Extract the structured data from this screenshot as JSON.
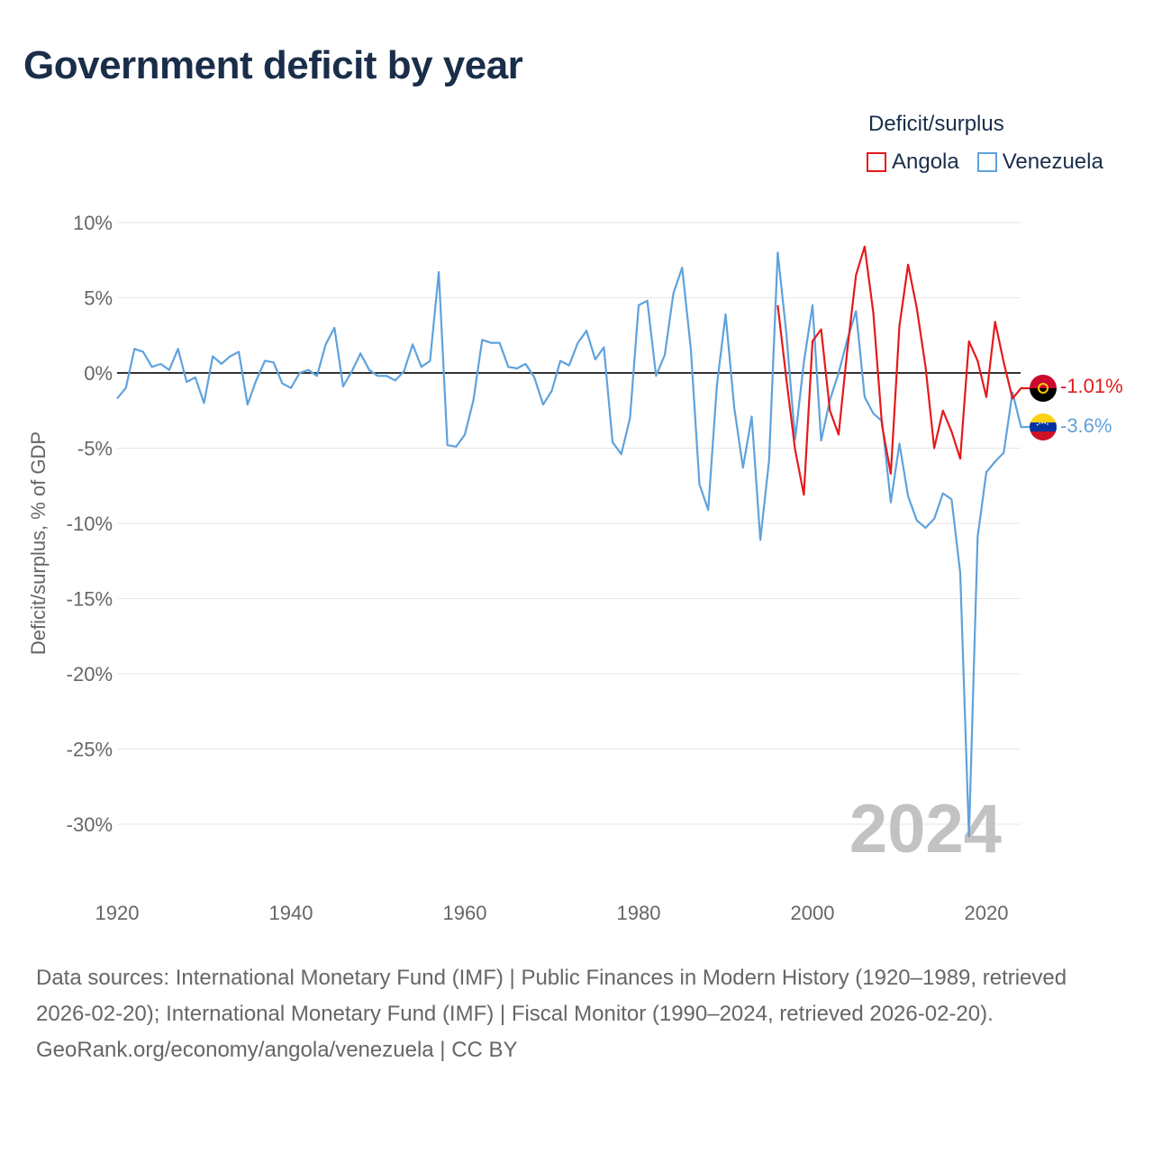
{
  "title": "Government deficit by year",
  "legend": {
    "title": "Deficit/surplus",
    "items": [
      {
        "name": "Angola",
        "color": "#e41a1c"
      },
      {
        "name": "Venezuela",
        "color": "#5fa2dd"
      }
    ]
  },
  "watermark_year": "2024",
  "end_labels": {
    "angola": "-1.01%",
    "venezuela": "-3.6%"
  },
  "footer": {
    "sources": "Data sources: International Monetary Fund (IMF) | Public Finances in Modern History (1920–1989, retrieved 2026-02-20); International Monetary Fund (IMF) | Fiscal Monitor (1990–2024, retrieved 2026-02-20).",
    "credit": "GeoRank.org/economy/angola/venezuela | CC BY"
  },
  "chart_data": {
    "type": "line",
    "title": "Government deficit by year",
    "xlabel": "",
    "ylabel": "Deficit/surplus, % of GDP",
    "xlim": [
      1920,
      2024
    ],
    "ylim": [
      -34,
      10
    ],
    "xticks": [
      1920,
      1940,
      1960,
      1980,
      2000,
      2020
    ],
    "yticks": [
      10,
      5,
      0,
      -5,
      -10,
      -15,
      -20,
      -25,
      -30
    ],
    "ytick_labels": [
      "10%",
      "5%",
      "0%",
      "-5%",
      "-10%",
      "-15%",
      "-20%",
      "-25%",
      "-30%"
    ],
    "xtick_labels": [
      "1920",
      "1940",
      "1960",
      "1980",
      "2000",
      "2020"
    ],
    "series": [
      {
        "name": "Venezuela",
        "color": "#5fa2dd",
        "x": [
          1920,
          1921,
          1922,
          1923,
          1924,
          1925,
          1926,
          1927,
          1928,
          1929,
          1930,
          1931,
          1932,
          1933,
          1934,
          1935,
          1936,
          1937,
          1938,
          1939,
          1940,
          1941,
          1942,
          1943,
          1944,
          1945,
          1946,
          1947,
          1948,
          1949,
          1950,
          1951,
          1952,
          1953,
          1954,
          1955,
          1956,
          1957,
          1958,
          1959,
          1960,
          1961,
          1962,
          1963,
          1964,
          1965,
          1966,
          1967,
          1968,
          1969,
          1970,
          1971,
          1972,
          1973,
          1974,
          1975,
          1976,
          1977,
          1978,
          1979,
          1980,
          1981,
          1982,
          1983,
          1984,
          1985,
          1986,
          1987,
          1988,
          1989,
          1990,
          1991,
          1992,
          1993,
          1994,
          1995,
          1996,
          1997,
          1998,
          1999,
          2000,
          2001,
          2002,
          2003,
          2004,
          2005,
          2006,
          2007,
          2008,
          2009,
          2010,
          2011,
          2012,
          2013,
          2014,
          2015,
          2016,
          2017,
          2018,
          2019,
          2020,
          2021,
          2022,
          2023,
          2024
        ],
        "values": [
          -1.7,
          -1.0,
          1.6,
          1.4,
          0.4,
          0.6,
          0.2,
          1.6,
          -0.6,
          -0.3,
          -2.0,
          1.1,
          0.6,
          1.1,
          1.4,
          -2.1,
          -0.5,
          0.8,
          0.7,
          -0.7,
          -1.0,
          0.0,
          0.2,
          -0.2,
          1.9,
          3.0,
          -0.9,
          0.1,
          1.3,
          0.2,
          -0.2,
          -0.2,
          -0.5,
          0.1,
          1.9,
          0.4,
          0.8,
          6.7,
          -4.8,
          -4.9,
          -4.1,
          -1.8,
          2.2,
          2.0,
          2.0,
          0.4,
          0.3,
          0.6,
          -0.3,
          -2.1,
          -1.2,
          0.8,
          0.5,
          2.0,
          2.8,
          0.9,
          1.7,
          -4.6,
          -5.4,
          -3.0,
          4.5,
          4.8,
          -0.2,
          1.2,
          5.3,
          7.0,
          1.6,
          -7.4,
          -9.1,
          -0.8,
          3.9,
          -2.3,
          -6.3,
          -2.9,
          -11.1,
          -5.8,
          8.0,
          2.6,
          -4.4,
          0.7,
          4.5,
          -4.5,
          -1.8,
          0.0,
          2.2,
          4.1,
          -1.6,
          -2.7,
          -3.2,
          -8.6,
          -4.7,
          -8.2,
          -9.8,
          -10.3,
          -9.7,
          -8.0,
          -8.4,
          -13.3,
          -30.8,
          -10.9,
          -6.6,
          -5.9,
          -5.3,
          -1.3,
          -3.6
        ]
      },
      {
        "name": "Angola",
        "color": "#e41a1c",
        "x": [
          1996,
          1997,
          1998,
          1999,
          2000,
          2001,
          2002,
          2003,
          2004,
          2005,
          2006,
          2007,
          2008,
          2009,
          2010,
          2011,
          2012,
          2013,
          2014,
          2015,
          2016,
          2017,
          2018,
          2019,
          2020,
          2021,
          2022,
          2023,
          2024
        ],
        "values": [
          4.5,
          -0.4,
          -5.1,
          -8.1,
          2.1,
          2.9,
          -2.5,
          -4.1,
          1.5,
          6.5,
          8.4,
          4.0,
          -3.5,
          -6.7,
          3.1,
          7.2,
          4.3,
          0.4,
          -5.0,
          -2.5,
          -3.9,
          -5.7,
          2.1,
          0.8,
          -1.6,
          3.4,
          0.7,
          -1.7,
          -1.01
        ]
      }
    ]
  }
}
